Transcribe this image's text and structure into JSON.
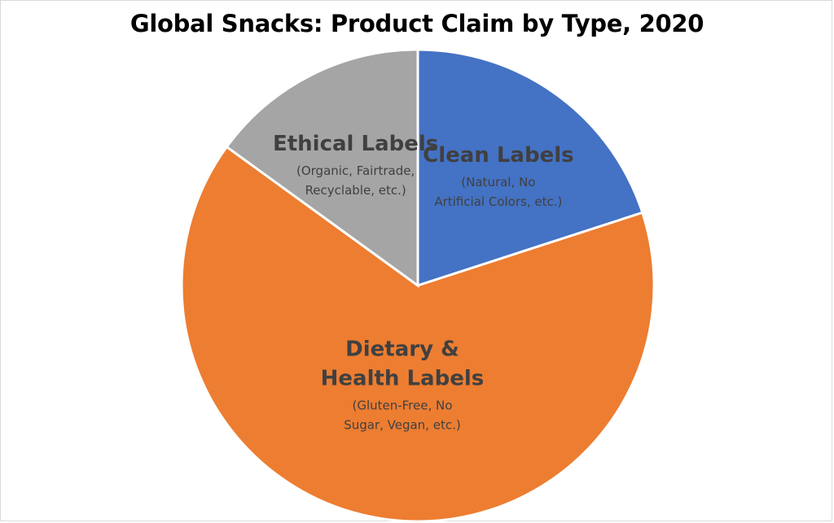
{
  "chart_data": {
    "type": "pie",
    "title": "Global Snacks: Product Claim by Type, 2020",
    "slices": [
      {
        "name": "Clean Labels",
        "description": [
          "(Natural, No",
          "Artificial Colors, etc.)"
        ],
        "value": 20,
        "color": "#4472c4"
      },
      {
        "name": "Dietary & Health Labels",
        "name_lines": [
          "Dietary &",
          "Health Labels"
        ],
        "description": [
          "(Gluten-Free, No",
          "Sugar, Vegan, etc.)"
        ],
        "value": 65,
        "color": "#ed7d31"
      },
      {
        "name": "Ethical Labels",
        "description": [
          "(Organic, Fairtrade,",
          "Recyclable, etc.)"
        ],
        "value": 15,
        "color": "#a5a5a5"
      }
    ]
  }
}
